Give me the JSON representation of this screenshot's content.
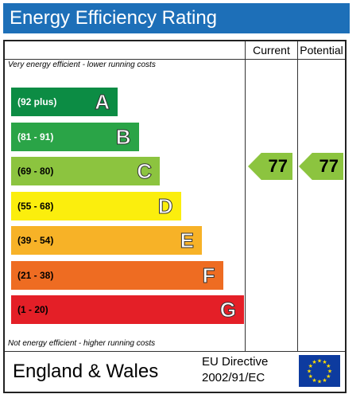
{
  "title": "Energy Efficiency Rating",
  "columns": {
    "current": "Current",
    "potential": "Potential"
  },
  "top_note": "Very energy efficient - lower running costs",
  "bottom_note": "Not energy efficient - higher running costs",
  "bands": [
    {
      "range": "(92 plus)",
      "letter": "A",
      "color": "#0c8c44",
      "range_color": "#ffffff"
    },
    {
      "range": "(81 - 91)",
      "letter": "B",
      "color": "#2aa447",
      "range_color": "#ffffff"
    },
    {
      "range": "(69 - 80)",
      "letter": "C",
      "color": "#8cc43f",
      "range_color": "#000000"
    },
    {
      "range": "(55 - 68)",
      "letter": "D",
      "color": "#fbee0d",
      "range_color": "#000000"
    },
    {
      "range": "(39 - 54)",
      "letter": "E",
      "color": "#f7b227",
      "range_color": "#000000"
    },
    {
      "range": "(21 - 38)",
      "letter": "F",
      "color": "#ee6c22",
      "range_color": "#000000"
    },
    {
      "range": "(1 - 20)",
      "letter": "G",
      "color": "#e41f27",
      "range_color": "#000000"
    }
  ],
  "ratings": {
    "current": {
      "value": "77",
      "color": "#8cc43f"
    },
    "potential": {
      "value": "77",
      "color": "#8cc43f"
    }
  },
  "footer": {
    "region": "England & Wales",
    "directive_line1": "EU Directive",
    "directive_line2": "2002/91/EC",
    "flag_icon": "eu-flag-icon",
    "flag_color": "#0d3b9f",
    "star_color": "#ffdd00"
  }
}
